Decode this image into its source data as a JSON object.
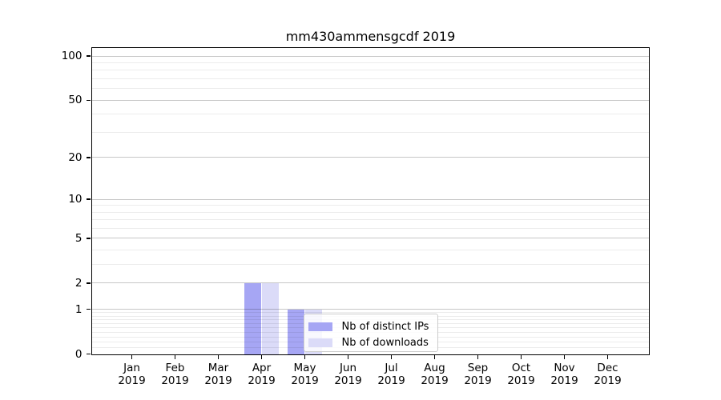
{
  "chart_data": {
    "type": "bar",
    "title": "mm430ammensgcdf 2019",
    "x_tick_labels": [
      {
        "month": "Jan",
        "year": "2019"
      },
      {
        "month": "Feb",
        "year": "2019"
      },
      {
        "month": "Mar",
        "year": "2019"
      },
      {
        "month": "Apr",
        "year": "2019"
      },
      {
        "month": "May",
        "year": "2019"
      },
      {
        "month": "Jun",
        "year": "2019"
      },
      {
        "month": "Jul",
        "year": "2019"
      },
      {
        "month": "Aug",
        "year": "2019"
      },
      {
        "month": "Sep",
        "year": "2019"
      },
      {
        "month": "Oct",
        "year": "2019"
      },
      {
        "month": "Nov",
        "year": "2019"
      },
      {
        "month": "Dec",
        "year": "2019"
      }
    ],
    "series": [
      {
        "name": "Nb of distinct IPs",
        "color": "#a6a6f4",
        "values": [
          0,
          0,
          0,
          2,
          1,
          0,
          0,
          0,
          0,
          0,
          0,
          0
        ]
      },
      {
        "name": "Nb of downloads",
        "color": "#dbdbf8",
        "values": [
          0,
          0,
          0,
          2,
          1,
          0,
          0,
          0,
          0,
          0,
          0,
          0
        ]
      }
    ],
    "yscale": "log1p",
    "ylim": [
      0,
      114
    ],
    "yticks_major": [
      0,
      1,
      2,
      5,
      10,
      20,
      50,
      100
    ],
    "yticks_minor": [
      0.1,
      0.2,
      0.3,
      0.4,
      0.5,
      0.6,
      0.7,
      0.8,
      0.9,
      3,
      4,
      6,
      7,
      8,
      9,
      30,
      40,
      60,
      70,
      80,
      90
    ],
    "grid": true,
    "legend_position": "lower center"
  },
  "legend": {
    "items": [
      {
        "label": "Nb of distinct IPs"
      },
      {
        "label": "Nb of downloads"
      }
    ]
  },
  "colors": {
    "background": "#ffffff",
    "spine": "#000000",
    "grid_major": "rgba(0,0,0,0.22)",
    "grid_minor": "rgba(0,0,0,0.08)",
    "bar_distinct_ips": "#a6a6f4",
    "bar_downloads": "#dbdbf8"
  }
}
